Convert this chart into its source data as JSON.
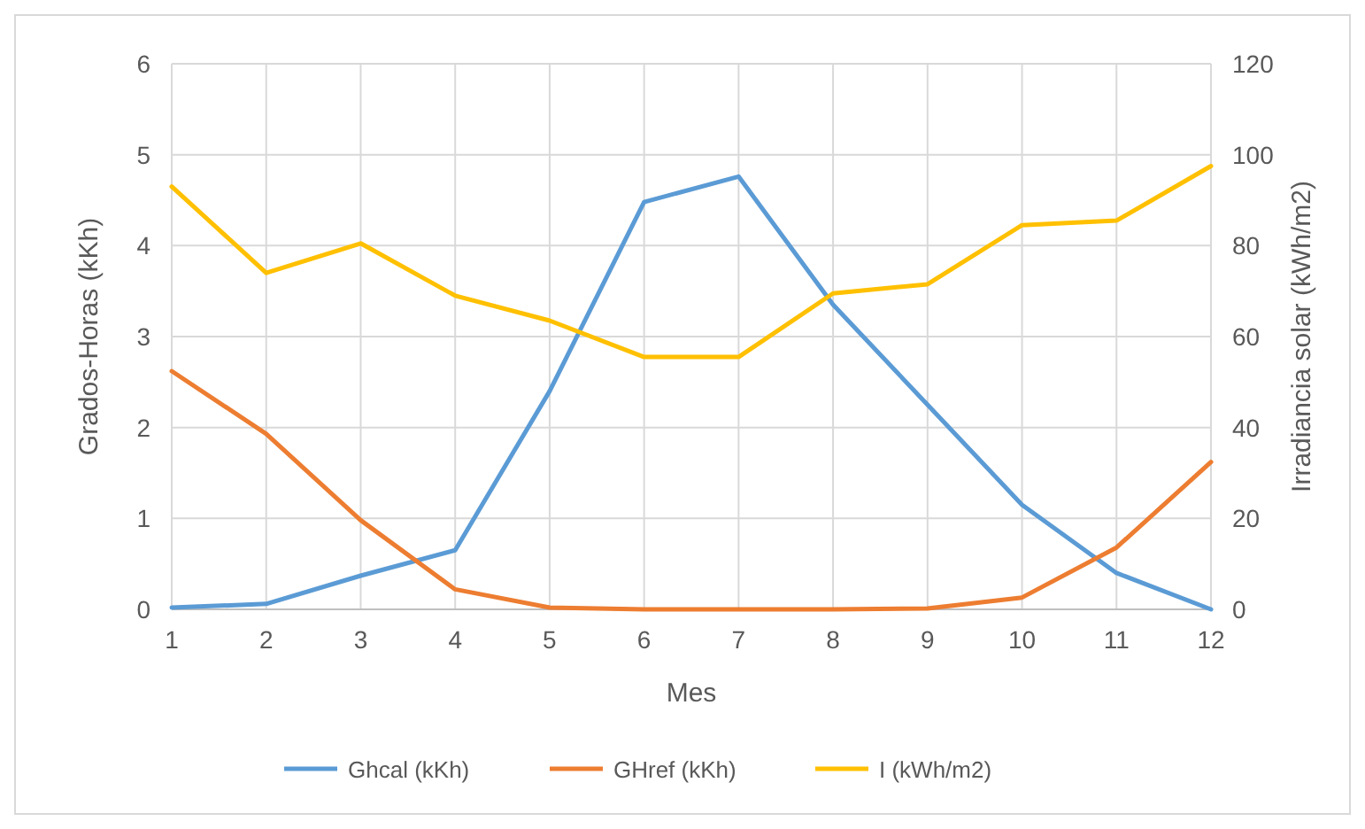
{
  "chart_data": {
    "type": "line",
    "xlabel": "Mes",
    "ylabel": "Grados-Horas (kKh)",
    "y2label": "Irradiancia solar (kWh/m2)",
    "x": [
      1,
      2,
      3,
      4,
      5,
      6,
      7,
      8,
      9,
      10,
      11,
      12
    ],
    "xlim": [
      1,
      12
    ],
    "xticks": [
      1,
      2,
      3,
      4,
      5,
      6,
      7,
      8,
      9,
      10,
      11,
      12
    ],
    "ylim": [
      0,
      6
    ],
    "yticks": [
      0,
      1,
      2,
      3,
      4,
      5,
      6
    ],
    "y2lim": [
      0,
      120
    ],
    "y2ticks": [
      0,
      20,
      40,
      60,
      80,
      100,
      120
    ],
    "grid": true,
    "legend": "bottom",
    "marker": "none",
    "line_style": "solid",
    "series": [
      {
        "name": "Ghcal (kKh)",
        "color": "#5b9bd5",
        "values": [
          0.02,
          0.06,
          0.37,
          0.65,
          2.4,
          4.48,
          4.76,
          3.35,
          2.25,
          1.15,
          0.4,
          0.0
        ]
      },
      {
        "name": "GHref (kKh)",
        "color": "#ed7d31",
        "values": [
          2.62,
          1.93,
          0.98,
          0.22,
          0.02,
          0.0,
          0.0,
          0.0,
          0.01,
          0.13,
          0.68,
          1.62
        ]
      },
      {
        "name": "I (kWh/m2)",
        "color": "#ffc000",
        "axis": "y2",
        "values": [
          93,
          74,
          80.5,
          69,
          63.5,
          55.5,
          55.5,
          69.5,
          71.5,
          84.5,
          85.5,
          97.5
        ]
      }
    ]
  }
}
